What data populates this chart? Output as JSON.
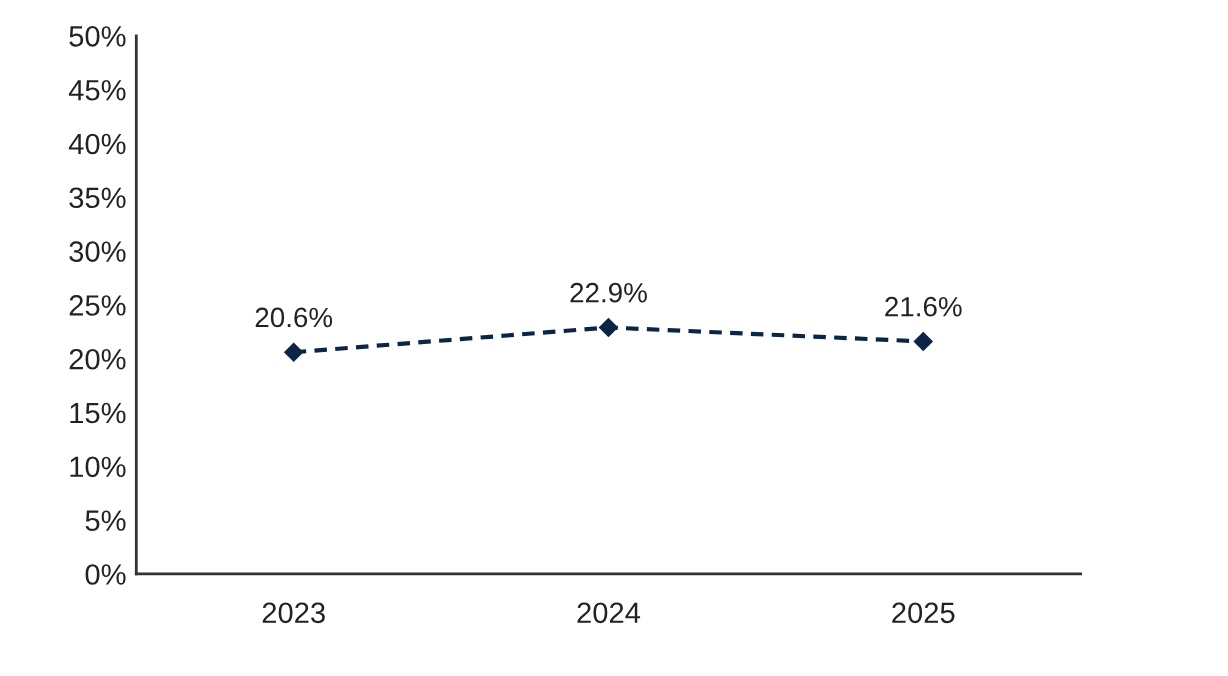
{
  "chart_data": {
    "type": "line",
    "categories": [
      "2023",
      "2024",
      "2025"
    ],
    "series": [
      {
        "color": "#0b2545",
        "values": [
          20.6,
          22.9,
          21.6
        ],
        "value_labels": [
          "20.6%",
          "22.9%",
          "21.6%"
        ]
      }
    ],
    "ylim": [
      0,
      50
    ],
    "yticks": [
      {
        "value": 0,
        "label": "0%"
      },
      {
        "value": 5,
        "label": "5%"
      },
      {
        "value": 10,
        "label": "10%"
      },
      {
        "value": 15,
        "label": "15%"
      },
      {
        "value": 20,
        "label": "20%"
      },
      {
        "value": 25,
        "label": "25%"
      },
      {
        "value": 30,
        "label": "30%"
      },
      {
        "value": 35,
        "label": "35%"
      },
      {
        "value": 40,
        "label": "40%"
      },
      {
        "value": 45,
        "label": "45%"
      },
      {
        "value": 50,
        "label": "50%"
      }
    ],
    "marker": "diamond",
    "line_style": "dashed",
    "grid": false
  }
}
